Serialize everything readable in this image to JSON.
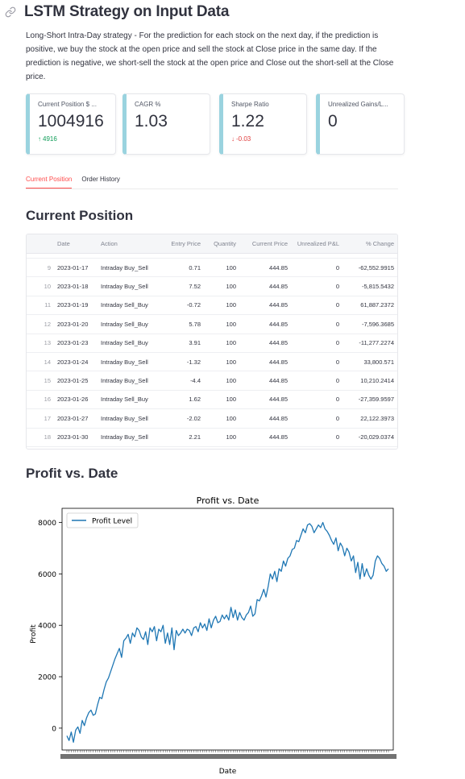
{
  "page": {
    "title": "LSTM Strategy on Input Data",
    "description": "Long-Short Intra-Day strategy - For the prediction for each stock on the next day, if the prediction is positive, we buy the stock at the open price and sell the stock at Close price in the same day. If the prediction is negative, we short-sell the stock at the open price and Close out the short-sell at the Close price."
  },
  "metrics": [
    {
      "label": "Current Position $ ...",
      "value": "1004916",
      "delta": "4916",
      "direction": "up"
    },
    {
      "label": "CAGR %",
      "value": "1.03",
      "delta": "",
      "direction": "none"
    },
    {
      "label": "Sharpe Ratio",
      "value": "1.22",
      "delta": "-0.03",
      "direction": "down"
    },
    {
      "label": "Unrealized Gains/L...",
      "value": "0",
      "delta": "",
      "direction": "none"
    }
  ],
  "tabs": [
    {
      "label": "Current Position",
      "active": true
    },
    {
      "label": "Order History",
      "active": false
    }
  ],
  "section_current": "Current Position",
  "section_profit": "Profit vs. Date",
  "table": {
    "columns": [
      "Date",
      "Action",
      "Entry Price",
      "Quantity",
      "Current Price",
      "Unrealized P&L",
      "% Change"
    ],
    "rows": [
      [
        "9",
        "2023-01-17",
        "Intraday Buy_Sell",
        "0.71",
        "100",
        "444.85",
        "0",
        "-62,552.9915"
      ],
      [
        "10",
        "2023-01-18",
        "Intraday Buy_Sell",
        "7.52",
        "100",
        "444.85",
        "0",
        "-5,815.5432"
      ],
      [
        "11",
        "2023-01-19",
        "Intraday Sell_Buy",
        "-0.72",
        "100",
        "444.85",
        "0",
        "61,887.2372"
      ],
      [
        "12",
        "2023-01-20",
        "Intraday Sell_Buy",
        "5.78",
        "100",
        "444.85",
        "0",
        "-7,596.3685"
      ],
      [
        "13",
        "2023-01-23",
        "Intraday Sell_Buy",
        "3.91",
        "100",
        "444.85",
        "0",
        "-11,277.2274"
      ],
      [
        "14",
        "2023-01-24",
        "Intraday Buy_Sell",
        "-1.32",
        "100",
        "444.85",
        "0",
        "33,800.571"
      ],
      [
        "15",
        "2023-01-25",
        "Intraday Buy_Sell",
        "-4.4",
        "100",
        "444.85",
        "0",
        "10,210.2414"
      ],
      [
        "16",
        "2023-01-26",
        "Intraday Sell_Buy",
        "1.62",
        "100",
        "444.85",
        "0",
        "-27,359.9597"
      ],
      [
        "17",
        "2023-01-27",
        "Intraday Buy_Sell",
        "-2.02",
        "100",
        "444.85",
        "0",
        "22,122.3973"
      ],
      [
        "18",
        "2023-01-30",
        "Intraday Buy_Sell",
        "2.21",
        "100",
        "444.85",
        "0",
        "-20,029.0374"
      ]
    ]
  },
  "chart_data": {
    "type": "line",
    "title": "Profit vs. Date",
    "xlabel": "Date",
    "ylabel": "Profit",
    "legend_position": "top-left",
    "grid": false,
    "ylim": [
      -850,
      8550
    ],
    "yticks": [
      0,
      2000,
      4000,
      6000,
      8000
    ],
    "color": "#1f77b4",
    "series": [
      {
        "name": "Profit Level",
        "values": [
          -300,
          -480,
          -150,
          -550,
          -80,
          50,
          -200,
          300,
          100,
          400,
          600,
          700,
          500,
          550,
          900,
          1200,
          1150,
          1500,
          1800,
          1950,
          2200,
          2450,
          2700,
          2900,
          3100,
          2750,
          3400,
          3500,
          3650,
          3300,
          3700,
          3550,
          3900,
          3800,
          3550,
          3450,
          3750,
          3250,
          3900,
          3750,
          3950,
          3400,
          3850,
          3750,
          4000,
          3300,
          3700,
          3250,
          3900,
          3050,
          3800,
          3600,
          3700,
          3850,
          3700,
          3850,
          3800,
          3600,
          3900,
          3950,
          3750,
          4100,
          3900,
          4050,
          3800,
          4250,
          3900,
          4200,
          4350,
          4100,
          4150,
          4400,
          4250,
          4400,
          4200,
          4700,
          4300,
          4600,
          4200,
          4500,
          4300,
          4200,
          4400,
          4500,
          4750,
          4350,
          4450,
          5000,
          4950,
          5150,
          5400,
          5100,
          5500,
          6000,
          5800,
          6100,
          5700,
          6200,
          6100,
          6500,
          6300,
          6600,
          6700,
          6950,
          7000,
          7300,
          7250,
          7500,
          7750,
          7600,
          7900,
          7950,
          7850,
          7600,
          7750,
          7900,
          7800,
          8000,
          7750,
          7650,
          7500,
          7300,
          7150,
          7400,
          6900,
          7200,
          7050,
          6700,
          7000,
          6850,
          6500,
          6700,
          6050,
          6450,
          5800,
          6400,
          5900,
          6200,
          5950,
          5800,
          5950,
          6500,
          6700,
          6600,
          6400,
          6300,
          6100,
          6200
        ]
      }
    ]
  }
}
